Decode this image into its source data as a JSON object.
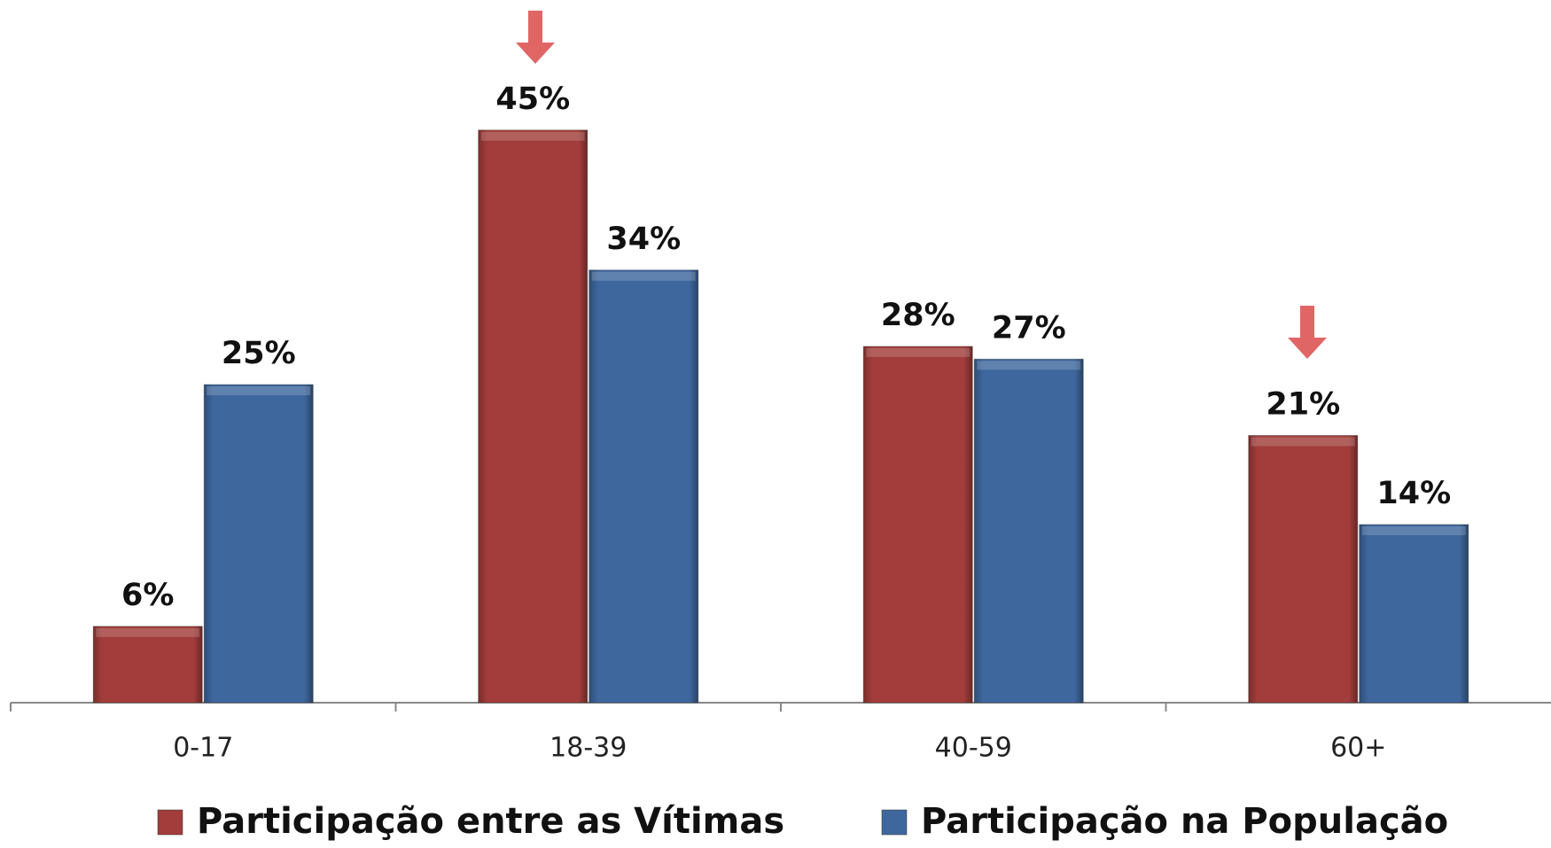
{
  "chart_data": {
    "type": "bar",
    "categories": [
      "0-17",
      "18-39",
      "40-59",
      "60+"
    ],
    "series": [
      {
        "name": "Participação entre as Vítimas",
        "color": "#a23d3b",
        "values": [
          6,
          45,
          28,
          21
        ],
        "value_labels": [
          "6%",
          "45%",
          "28%",
          "21%"
        ]
      },
      {
        "name": "Participação na População",
        "color": "#3e679d",
        "values": [
          25,
          34,
          27,
          14
        ],
        "value_labels": [
          "25%",
          "34%",
          "27%",
          "14%"
        ]
      }
    ],
    "ylim": [
      0,
      50
    ],
    "legend": "bottom"
  }
}
